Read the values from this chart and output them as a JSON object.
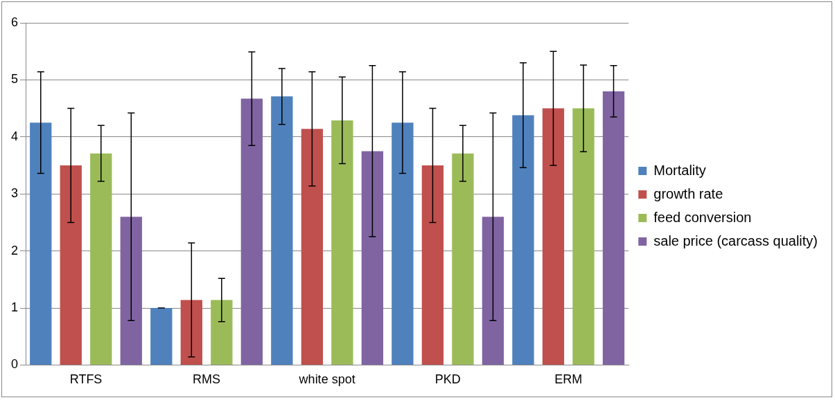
{
  "chart_data": {
    "type": "bar",
    "categories": [
      "RTFS",
      "RMS",
      "white spot",
      "PKD",
      "ERM"
    ],
    "series": [
      {
        "name": "Mortality",
        "color": "#4f81bd",
        "values": [
          4.25,
          1.0,
          4.71,
          4.25,
          4.38
        ],
        "errors": [
          0.89,
          0,
          0.49,
          0.89,
          0.92
        ]
      },
      {
        "name": "growth rate",
        "color": "#c0504d",
        "values": [
          3.5,
          1.14,
          4.14,
          3.5,
          4.5
        ],
        "errors": [
          1.0,
          1.0,
          1.0,
          1.0,
          1.0
        ]
      },
      {
        "name": "feed conversion",
        "color": "#9bbb59",
        "values": [
          3.71,
          1.14,
          4.29,
          3.71,
          4.5
        ],
        "errors": [
          0.49,
          0.38,
          0.76,
          0.49,
          0.76
        ]
      },
      {
        "name": "sale price (carcass quality)",
        "color": "#8064a2",
        "values": [
          2.6,
          4.67,
          3.75,
          2.6,
          4.8
        ],
        "errors": [
          1.82,
          0.82,
          1.5,
          1.82,
          0.45
        ]
      }
    ],
    "ylim": [
      0,
      6
    ],
    "yticks": [
      0,
      1,
      2,
      3,
      4,
      5,
      6
    ],
    "grid": "y",
    "legend": "right"
  }
}
